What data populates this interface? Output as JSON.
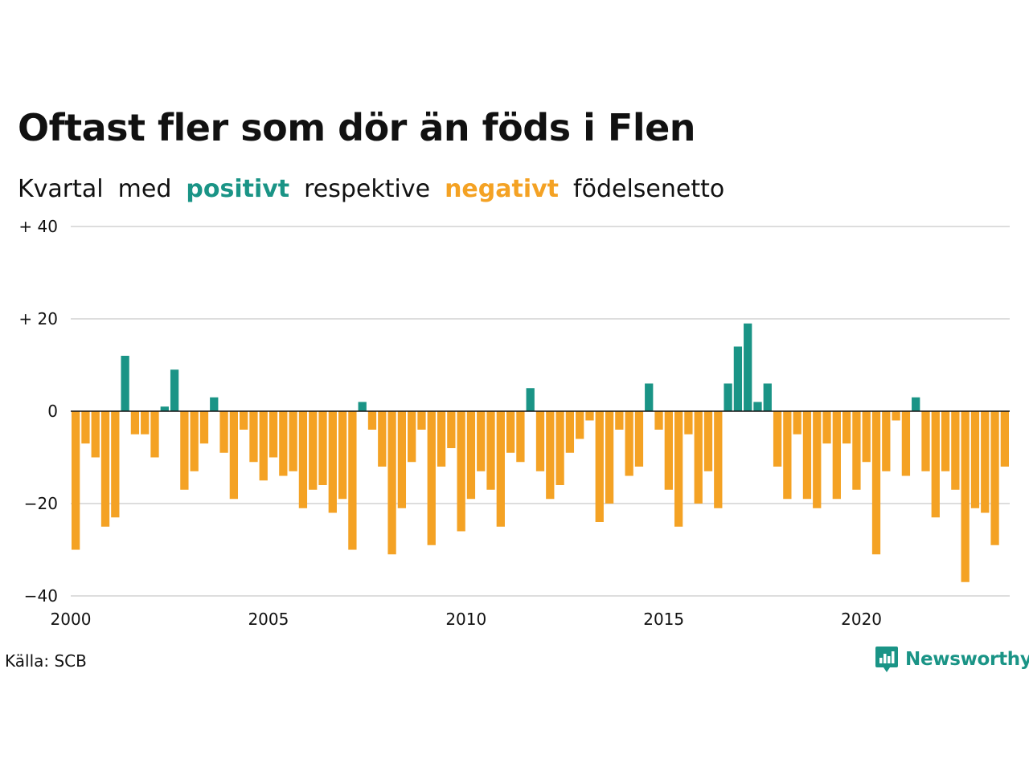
{
  "header": {
    "title": "Oftast fler som dör än föds i Flen",
    "subtitle": {
      "w1": "Kvartal",
      "w2": "med",
      "positive": "positivt",
      "w3": "respektive",
      "negative": "negativt",
      "w4": "födelsenetto"
    }
  },
  "footer": {
    "source": "Källa: SCB",
    "brand": "Newsworthy"
  },
  "colors": {
    "positive": "#1a9486",
    "negative": "#f4a224"
  },
  "chart_data": {
    "type": "bar",
    "title": "Oftast fler som dör än föds i Flen",
    "ylim": [
      -40,
      40
    ],
    "yticks": [
      {
        "value": 40,
        "label": "+ 40"
      },
      {
        "value": 20,
        "label": "+ 20"
      },
      {
        "value": 0,
        "label": "0"
      },
      {
        "value": -20,
        "label": "−20"
      },
      {
        "value": -40,
        "label": "−40"
      }
    ],
    "xticks": [
      {
        "value": 2000,
        "label": "2000"
      },
      {
        "value": 2005,
        "label": "2005"
      },
      {
        "value": 2010,
        "label": "2010"
      },
      {
        "value": 2015,
        "label": "2015"
      },
      {
        "value": 2020,
        "label": "2020"
      }
    ],
    "start_year": 2000,
    "start_quarter": 1,
    "values": [
      -30,
      -7,
      -10,
      -25,
      -23,
      12,
      -5,
      -5,
      -10,
      1,
      9,
      -17,
      -13,
      -7,
      3,
      -9,
      -19,
      -4,
      -11,
      -15,
      -10,
      -14,
      -13,
      -21,
      -17,
      -16,
      -22,
      -19,
      -30,
      2,
      -4,
      -12,
      -31,
      -21,
      -11,
      -4,
      -29,
      -12,
      -8,
      -26,
      -19,
      -13,
      -17,
      -25,
      -9,
      -11,
      5,
      -13,
      -19,
      -16,
      -9,
      -6,
      -2,
      -24,
      -20,
      -4,
      -14,
      -12,
      6,
      -4,
      -17,
      -25,
      -5,
      -20,
      -13,
      -21,
      6,
      14,
      19,
      2,
      6,
      -12,
      -19,
      -5,
      -19,
      -21,
      -7,
      -19,
      -7,
      -17,
      -11,
      -31,
      -13,
      -2,
      -14,
      3,
      -13,
      -23,
      -13,
      -17,
      -37,
      -21,
      -22,
      -29,
      -12
    ]
  }
}
